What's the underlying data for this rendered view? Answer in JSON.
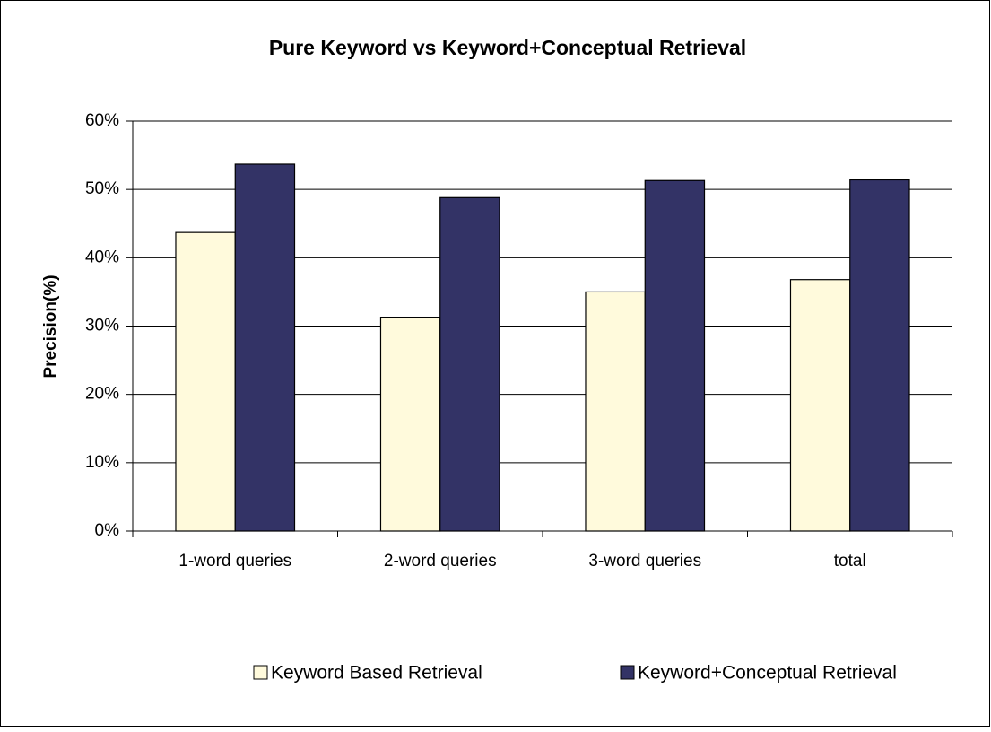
{
  "chart_data": {
    "type": "bar",
    "title": "Pure Keyword  vs  Keyword+Conceptual Retrieval",
    "y_label": "Precision(%)",
    "categories": [
      "1-word queries",
      "2-word queries",
      "3-word queries",
      "total"
    ],
    "series": [
      {
        "name": "Keyword Based Retrieval",
        "color": "#fffadc",
        "values": [
          43.7,
          31.3,
          35.0,
          36.8
        ]
      },
      {
        "name": "Keyword+Conceptual Retrieval",
        "color": "#333366",
        "values": [
          53.7,
          48.8,
          51.3,
          51.4
        ]
      }
    ],
    "ylim": [
      0,
      60
    ],
    "yticks": [
      {
        "value": 0,
        "label": "0%"
      },
      {
        "value": 10,
        "label": "10%"
      },
      {
        "value": 20,
        "label": "20%"
      },
      {
        "value": 30,
        "label": "30%"
      },
      {
        "value": 40,
        "label": "40%"
      },
      {
        "value": 50,
        "label": "50%"
      },
      {
        "value": 60,
        "label": "60%"
      }
    ],
    "grid": true,
    "legend": "bottom"
  }
}
